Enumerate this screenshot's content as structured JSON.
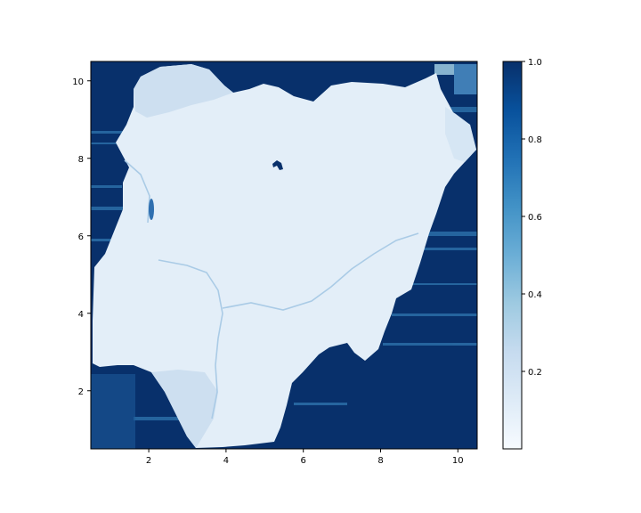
{
  "chart_data": [
    {
      "type": "heatmap",
      "title": "",
      "xlabel": "",
      "ylabel": "",
      "xlim": [
        0.5,
        10.5
      ],
      "ylim": [
        0.5,
        10.5
      ],
      "xticks": [
        2,
        4,
        6,
        8,
        10
      ],
      "yticks": [
        2,
        4,
        6,
        8,
        10
      ],
      "grid": false,
      "colormap": "Blues",
      "colormap_stops": [
        "#f7fbff",
        "#deebf7",
        "#c6dbef",
        "#9ecae1",
        "#6baed6",
        "#4292c6",
        "#2171b5",
        "#08519c",
        "#08306b"
      ],
      "background_value": 1.0,
      "land_value_approx": 0.1,
      "features": [
        {
          "name": "land-mass",
          "value": 0.1
        },
        {
          "name": "northwest-lighter-region",
          "value": 0.2
        },
        {
          "name": "southwest-lighter-region",
          "value": 0.2
        },
        {
          "name": "northeast-corner-patch",
          "value": 0.7
        },
        {
          "name": "inland-dark-spot",
          "value": 1.0
        },
        {
          "name": "western-lake",
          "value": 0.8
        }
      ]
    },
    {
      "type": "colorbar",
      "range": [
        0.0,
        1.0
      ],
      "tick_values": [
        0.2,
        0.4,
        0.6,
        0.8,
        1.0
      ],
      "tick_labels": [
        "0.2",
        "0.4",
        "0.6",
        "0.8",
        "1.0"
      ]
    }
  ]
}
